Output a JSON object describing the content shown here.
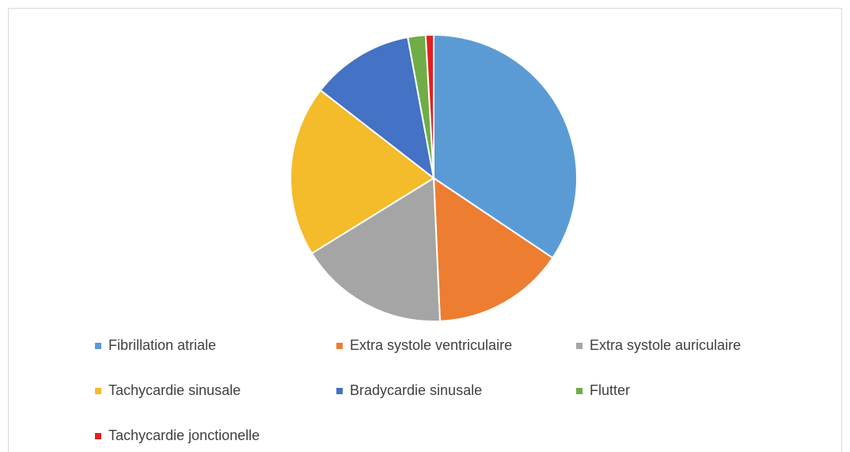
{
  "chart_data": {
    "type": "pie",
    "categories": [
      "Fibrillation atriale",
      "Extra systole ventriculaire",
      "Extra systole auriculaire",
      "Tachycardie sinusale",
      "Bradycardie sinusale",
      "Flutter",
      "Tachycardie jonctionelle"
    ],
    "values": [
      34.4,
      14.9,
      16.9,
      19.3,
      11.6,
      2,
      0.9
    ],
    "colors": [
      "#5b9bd5",
      "#ed7d31",
      "#a5a5a5",
      "#f4bb2a",
      "#4472c4",
      "#70ad47",
      "#e32020"
    ],
    "legend": "bottom"
  }
}
